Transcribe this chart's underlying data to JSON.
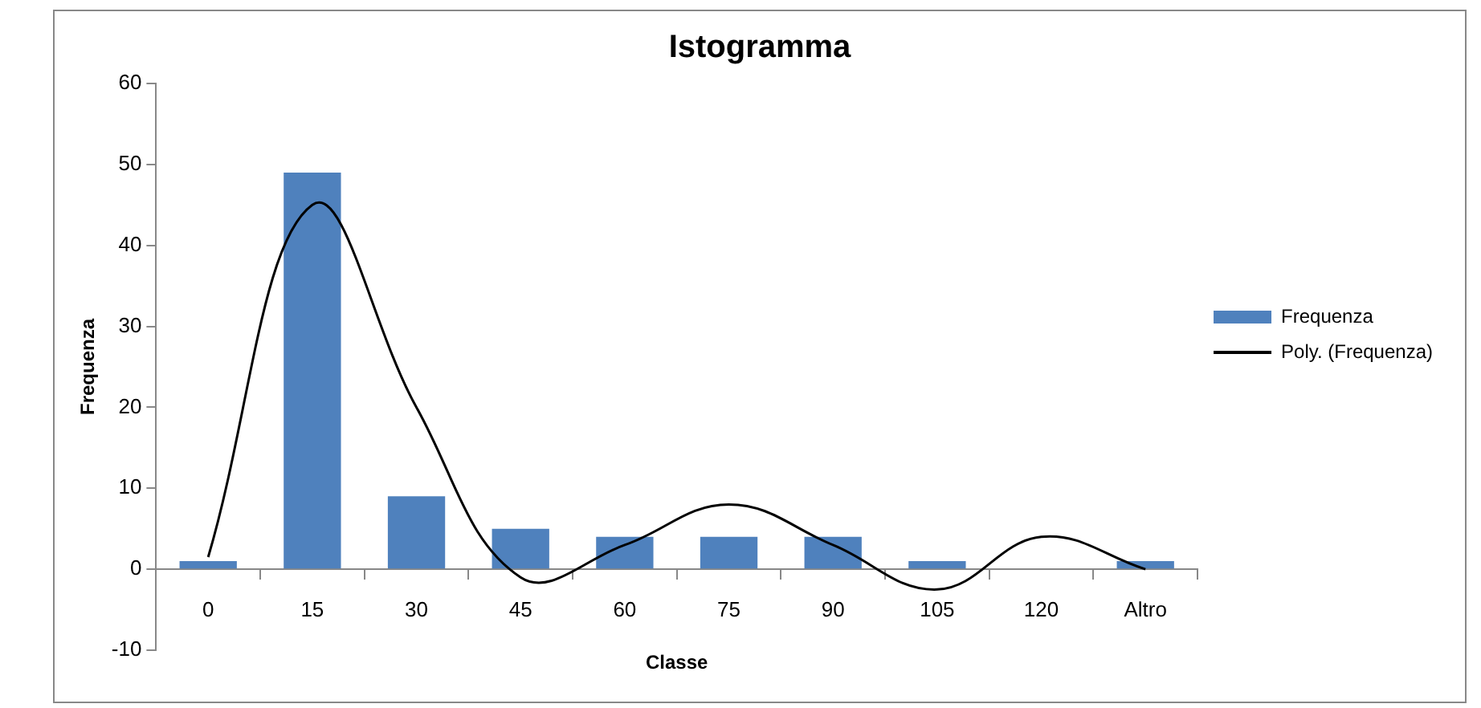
{
  "chart_data": {
    "type": "bar",
    "title": "Istogramma",
    "xlabel": "Classe",
    "ylabel": "Frequenza",
    "categories": [
      "0",
      "15",
      "30",
      "45",
      "60",
      "75",
      "90",
      "105",
      "120",
      "Altro"
    ],
    "series": [
      {
        "name": "Frequenza",
        "color": "#4f81bd",
        "values": [
          1,
          49,
          9,
          5,
          4,
          4,
          4,
          1,
          0,
          1
        ]
      },
      {
        "name": "Poly. (Frequenza)",
        "type": "line",
        "color": "#000000",
        "values": [
          1.5,
          45,
          20,
          -1,
          3,
          8,
          3,
          -2.5,
          4,
          0
        ]
      }
    ],
    "ylim": [
      -10,
      60
    ],
    "yticks": [
      -10,
      0,
      10,
      20,
      30,
      40,
      50,
      60
    ],
    "grid": false,
    "legend": "right",
    "marker": "none"
  }
}
